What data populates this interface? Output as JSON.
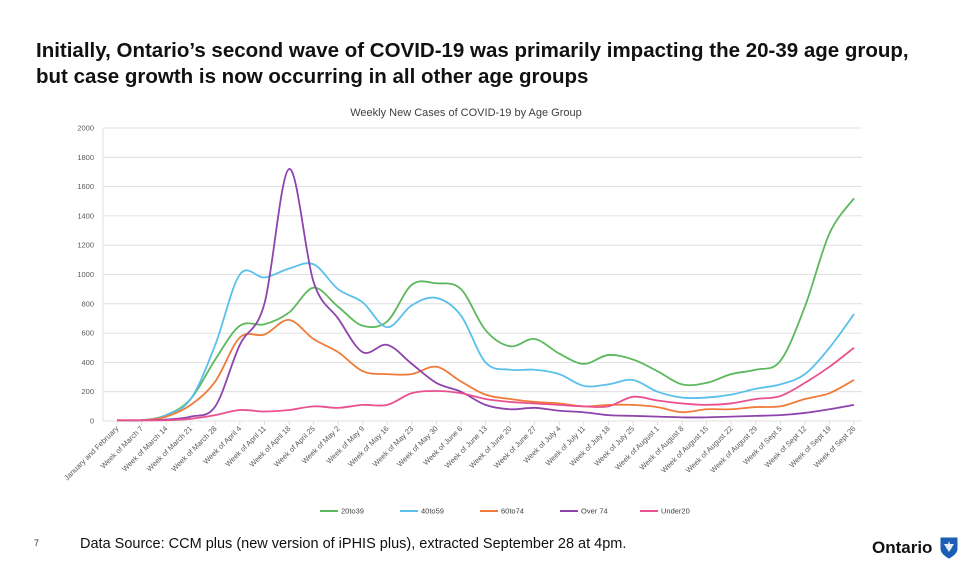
{
  "slide": {
    "headline": "Initially, Ontario’s second wave of COVID-19 was primarily impacting the 20-39 age group, but case growth is now occurring in all other age groups",
    "slide_number": "7",
    "source": "Data Source: CCM plus (new version of iPHIS plus), extracted September 28 at 4pm.",
    "logo_text": "Ontario"
  },
  "chart_data": {
    "type": "line",
    "title": "Weekly New Cases of COVID-19 by Age Group",
    "xlabel": "",
    "ylabel": "",
    "ylim": [
      0,
      2000
    ],
    "yticks": [
      0,
      200,
      400,
      600,
      800,
      1000,
      1200,
      1400,
      1600,
      1800,
      2000
    ],
    "grid": true,
    "legend_position": "bottom",
    "categories": [
      "January and February",
      "Week of March 7",
      "Week of March 14",
      "Week of March 21",
      "Week of March 28",
      "Week of April 4",
      "Week of April 11",
      "Week of April 18",
      "Week of April 25",
      "Week of May 2",
      "Week of May 9",
      "Week of May 16",
      "Week of May 23",
      "Week of May 30",
      "Week of June 6",
      "Week of June 13",
      "Week of June 20",
      "Week of June 27",
      "Week of July 4",
      "Week of July 11",
      "Week of July 18",
      "Week of July 25",
      "Week of August 1",
      "Week of August 8",
      "Week of August 15",
      "Week of August 22",
      "Week of August 29",
      "Week of Sept 5",
      "Week of Sept 12",
      "Week of Sept 19",
      "Week of Sept 26"
    ],
    "series": [
      {
        "name": "20to39",
        "color": "#5cb85c",
        "values": [
          5,
          5,
          40,
          150,
          420,
          650,
          660,
          740,
          910,
          780,
          650,
          680,
          930,
          940,
          900,
          620,
          510,
          560,
          460,
          390,
          450,
          420,
          340,
          250,
          260,
          320,
          350,
          410,
          780,
          1280,
          1520
        ]
      },
      {
        "name": "40to59",
        "color": "#5bc0eb",
        "values": [
          5,
          5,
          40,
          150,
          520,
          1000,
          980,
          1040,
          1070,
          900,
          810,
          640,
          790,
          840,
          720,
          400,
          350,
          350,
          320,
          240,
          250,
          280,
          200,
          160,
          160,
          180,
          220,
          250,
          320,
          500,
          730
        ]
      },
      {
        "name": "60to74",
        "color": "#f07c3a",
        "values": [
          5,
          5,
          30,
          110,
          270,
          570,
          590,
          690,
          560,
          470,
          340,
          320,
          320,
          370,
          270,
          180,
          150,
          130,
          120,
          100,
          110,
          110,
          95,
          60,
          80,
          80,
          95,
          100,
          150,
          190,
          280
        ]
      },
      {
        "name": "Over 74",
        "color": "#8e44ad",
        "values": [
          5,
          5,
          10,
          30,
          100,
          520,
          800,
          1720,
          950,
          700,
          470,
          520,
          390,
          260,
          200,
          110,
          80,
          90,
          70,
          60,
          40,
          35,
          30,
          25,
          25,
          30,
          35,
          40,
          55,
          80,
          110
        ]
      },
      {
        "name": "Under20",
        "color": "#e9528e",
        "values": [
          5,
          5,
          5,
          15,
          40,
          75,
          65,
          75,
          100,
          90,
          110,
          110,
          190,
          205,
          190,
          150,
          130,
          120,
          110,
          100,
          100,
          165,
          140,
          120,
          110,
          120,
          150,
          170,
          260,
          370,
          500
        ]
      }
    ]
  }
}
